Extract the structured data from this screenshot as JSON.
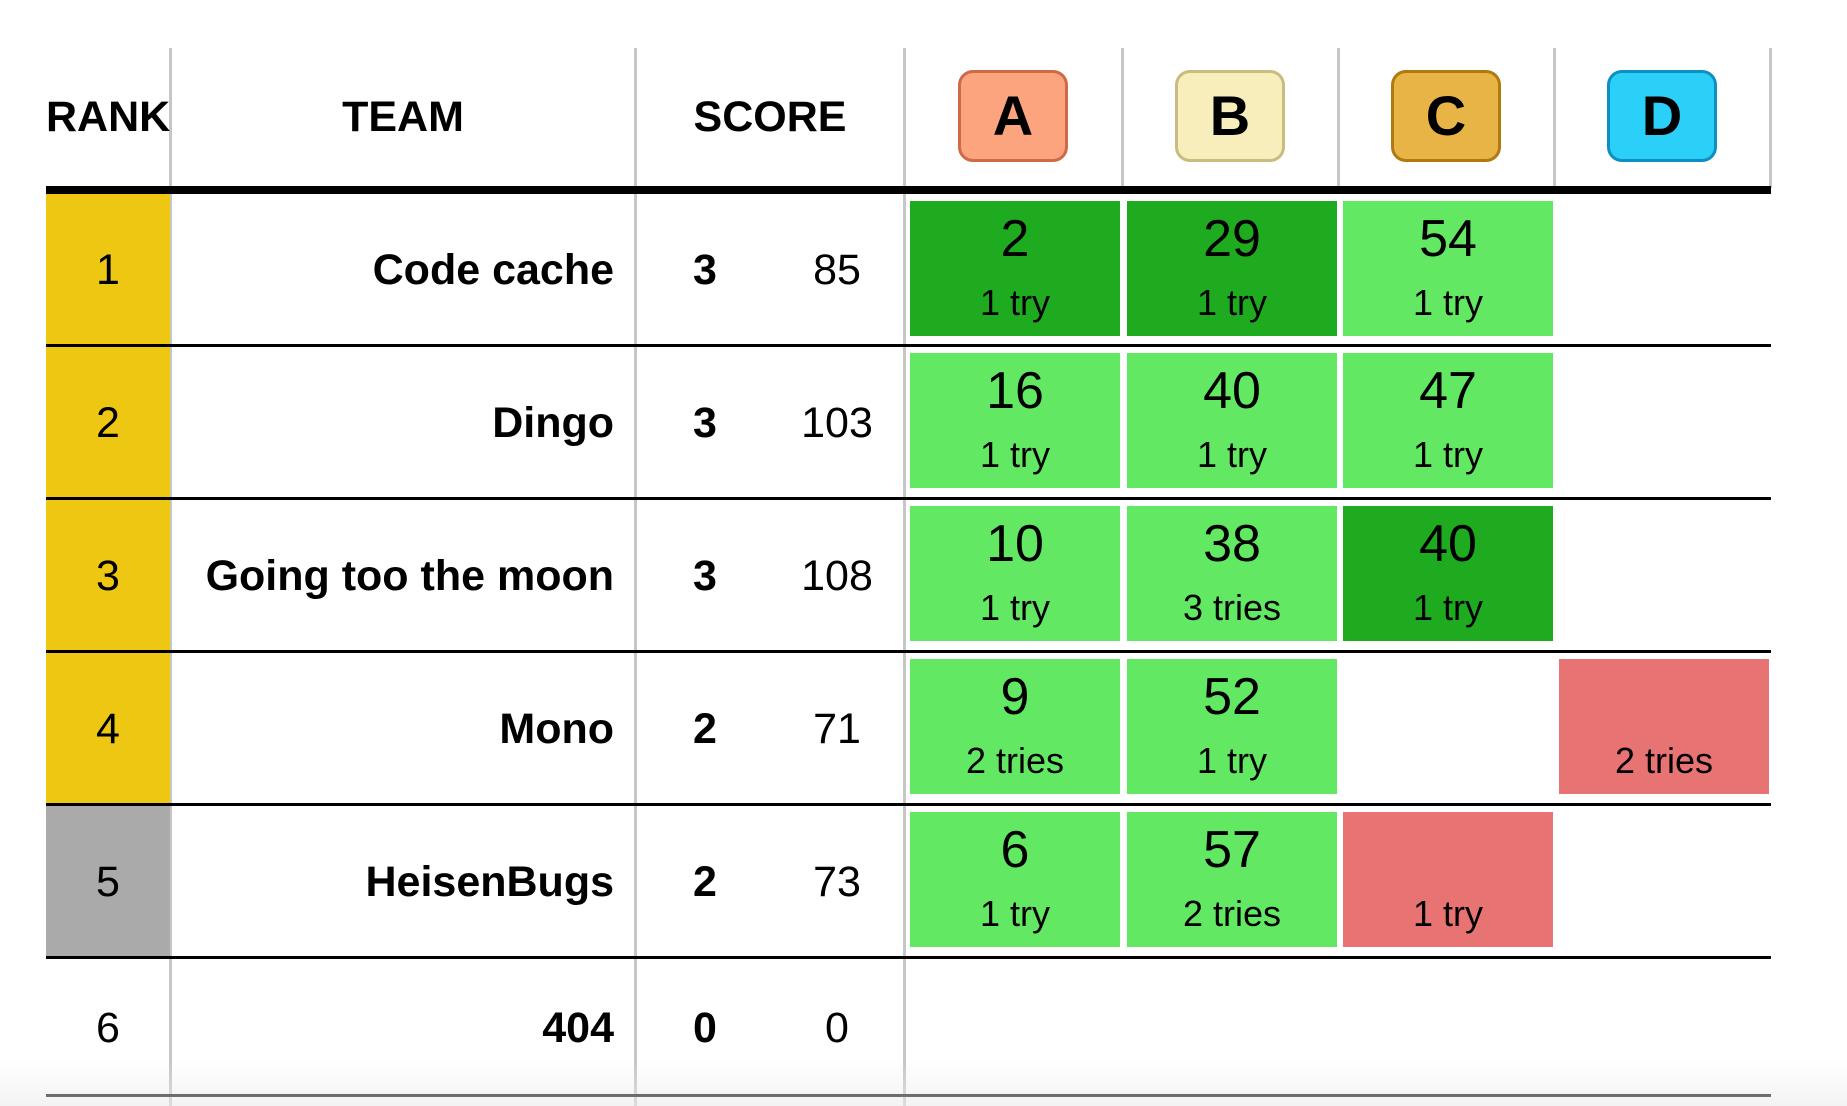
{
  "header": {
    "rank_label": "RANK",
    "team_label": "TEAM",
    "score_label": "SCORE",
    "problems": [
      {
        "letter": "A",
        "color": "#fca47e",
        "border": "#cc6a4a"
      },
      {
        "letter": "B",
        "color": "#f7eebb",
        "border": "#c8bd7e"
      },
      {
        "letter": "C",
        "color": "#e8b445",
        "border": "#b07a10"
      },
      {
        "letter": "D",
        "color": "#2bd0f8",
        "border": "#0e8fc4"
      }
    ]
  },
  "colors": {
    "gold_rank": "#eec713",
    "silver_rank": "#aaaaaa",
    "solved": "#62e863",
    "first_solve": "#1fab20",
    "failed": "#e87373"
  },
  "rows": [
    {
      "rank": "1",
      "team": "Code cache",
      "solved": "3",
      "penalty": "85",
      "medal": "gold",
      "cells": [
        {
          "time": "2",
          "attempts": "1 try",
          "status": "first_solve"
        },
        {
          "time": "29",
          "attempts": "1 try",
          "status": "first_solve"
        },
        {
          "time": "54",
          "attempts": "1 try",
          "status": "solved"
        },
        {
          "time": "",
          "attempts": "",
          "status": "none"
        }
      ]
    },
    {
      "rank": "2",
      "team": "Dingo",
      "solved": "3",
      "penalty": "103",
      "medal": "gold",
      "cells": [
        {
          "time": "16",
          "attempts": "1 try",
          "status": "solved"
        },
        {
          "time": "40",
          "attempts": "1 try",
          "status": "solved"
        },
        {
          "time": "47",
          "attempts": "1 try",
          "status": "solved"
        },
        {
          "time": "",
          "attempts": "",
          "status": "none"
        }
      ]
    },
    {
      "rank": "3",
      "team": "Going too the moon",
      "solved": "3",
      "penalty": "108",
      "medal": "gold",
      "cells": [
        {
          "time": "10",
          "attempts": "1 try",
          "status": "solved"
        },
        {
          "time": "38",
          "attempts": "3 tries",
          "status": "solved"
        },
        {
          "time": "40",
          "attempts": "1 try",
          "status": "first_solve"
        },
        {
          "time": "",
          "attempts": "",
          "status": "none"
        }
      ]
    },
    {
      "rank": "4",
      "team": "Mono",
      "solved": "2",
      "penalty": "71",
      "medal": "gold",
      "cells": [
        {
          "time": "9",
          "attempts": "2 tries",
          "status": "solved"
        },
        {
          "time": "52",
          "attempts": "1 try",
          "status": "solved"
        },
        {
          "time": "",
          "attempts": "",
          "status": "none"
        },
        {
          "time": "",
          "attempts": "2 tries",
          "status": "failed"
        }
      ]
    },
    {
      "rank": "5",
      "team": "HeisenBugs",
      "solved": "2",
      "penalty": "73",
      "medal": "silver",
      "cells": [
        {
          "time": "6",
          "attempts": "1 try",
          "status": "solved"
        },
        {
          "time": "57",
          "attempts": "2 tries",
          "status": "solved"
        },
        {
          "time": "",
          "attempts": "1 try",
          "status": "failed"
        },
        {
          "time": "",
          "attempts": "",
          "status": "none"
        }
      ]
    },
    {
      "rank": "6",
      "team": "404",
      "solved": "0",
      "penalty": "0",
      "medal": "none",
      "cells": [
        {
          "time": "",
          "attempts": "",
          "status": "none"
        },
        {
          "time": "",
          "attempts": "",
          "status": "none"
        },
        {
          "time": "",
          "attempts": "",
          "status": "none"
        },
        {
          "time": "",
          "attempts": "",
          "status": "none"
        }
      ]
    }
  ]
}
